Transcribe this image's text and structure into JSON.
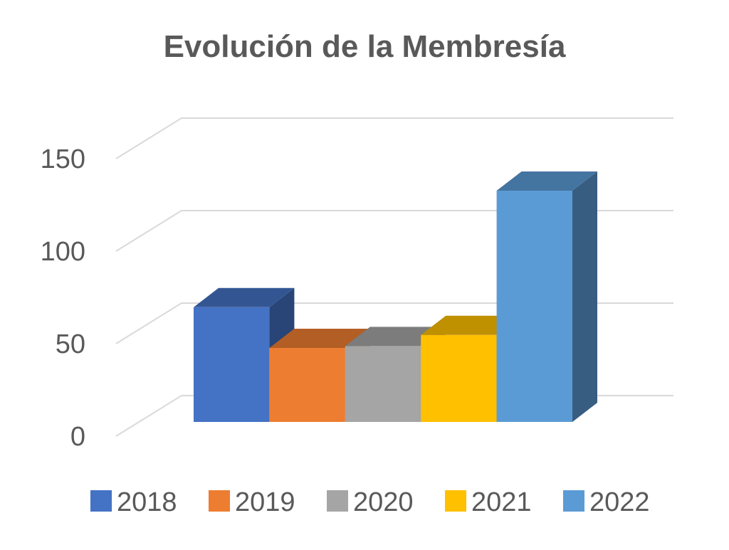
{
  "chart_data": {
    "type": "bar",
    "title": "Evolución de la Membresía",
    "categories": [
      "2018",
      "2019",
      "2020",
      "2021",
      "2022"
    ],
    "values": [
      62,
      40,
      41,
      47,
      125
    ],
    "colors": [
      "#4472C4",
      "#ED7D31",
      "#A5A5A5",
      "#FFC000",
      "#5B9BD5"
    ],
    "yticks": [
      "0",
      "50",
      "100",
      "150"
    ],
    "ylim": [
      0,
      150
    ],
    "xlabel": "",
    "ylabel": "",
    "grid": true,
    "style": "3d",
    "legend": {
      "position": "bottom",
      "entries": [
        "2018",
        "2019",
        "2020",
        "2021",
        "2022"
      ]
    }
  }
}
